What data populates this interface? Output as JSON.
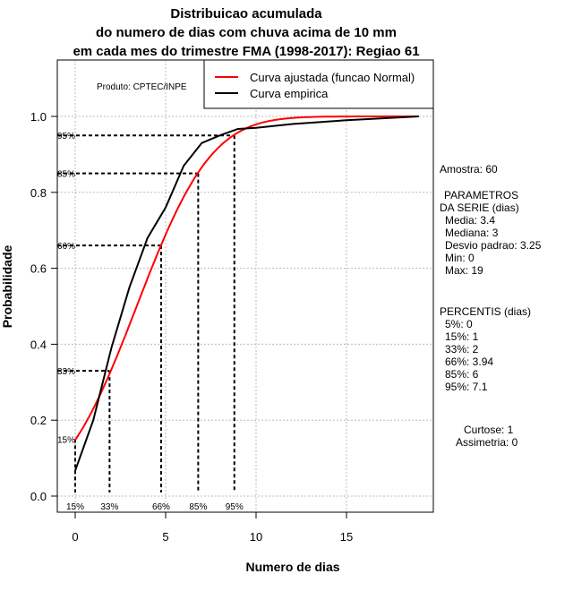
{
  "chart_data": {
    "type": "line",
    "title": [
      "Distribuicao acumulada",
      "do numero de dias com chuva acima de 10 mm",
      "em cada mes do trimestre FMA (1998-2017): Regiao 61"
    ],
    "xlabel": "Numero de dias",
    "ylabel": "Probabilidade",
    "xlim": [
      -1,
      19.8
    ],
    "ylim": [
      -0.04,
      1.15
    ],
    "xticks": [
      0,
      5,
      10,
      15
    ],
    "yticks": [
      "0.0",
      "0.2",
      "0.4",
      "0.6",
      "0.8",
      "1.0"
    ],
    "grid": true,
    "credit": "Produto: CPTEC/INPE",
    "legend": {
      "placement": "top-right",
      "entries": [
        {
          "label": "Curva ajustada (funcao Normal)",
          "color": "#ff0000"
        },
        {
          "label": "Curva empirica",
          "color": "#000000"
        }
      ]
    },
    "series": [
      {
        "name": "Curva ajustada (funcao Normal)",
        "distribution": "normal",
        "mean": 3.4,
        "sd": 3.25,
        "x_range": [
          0,
          19
        ],
        "color": "#ff0000"
      },
      {
        "name": "Curva empirica",
        "color": "#000000",
        "x": [
          0,
          1,
          2,
          3,
          4,
          5,
          6,
          7,
          8,
          9,
          10,
          12,
          15,
          19
        ],
        "y": [
          0.067,
          0.2,
          0.39,
          0.55,
          0.68,
          0.76,
          0.87,
          0.93,
          0.95,
          0.967,
          0.97,
          0.98,
          0.99,
          1.0
        ]
      }
    ],
    "percentile_markers": [
      {
        "label": "15%",
        "x": 0,
        "y": 0.15
      },
      {
        "label": "33%",
        "x": 1.9,
        "y": 0.33
      },
      {
        "label": "66%",
        "x": 4.75,
        "y": 0.66
      },
      {
        "label": "85%",
        "x": 6.8,
        "y": 0.85
      },
      {
        "label": "95%",
        "x": 8.8,
        "y": 0.95
      }
    ]
  },
  "side": {
    "amostra": "Amostra: 60",
    "param_title1": "PARAMETROS",
    "param_title2": "DA SERIE (dias)",
    "params": [
      "Media: 3.4",
      "Mediana: 3",
      "Desvio padrao: 3.25",
      "Min: 0",
      "Max: 19"
    ],
    "perc_title": "PERCENTIS (dias)",
    "percs": [
      "5%: 0",
      "15%: 1",
      "33%: 2",
      "66%: 3.94",
      "85%: 6",
      "95%: 7.1"
    ],
    "curtose": "Curtose: 1",
    "assimetria": "Assimetria: 0"
  }
}
